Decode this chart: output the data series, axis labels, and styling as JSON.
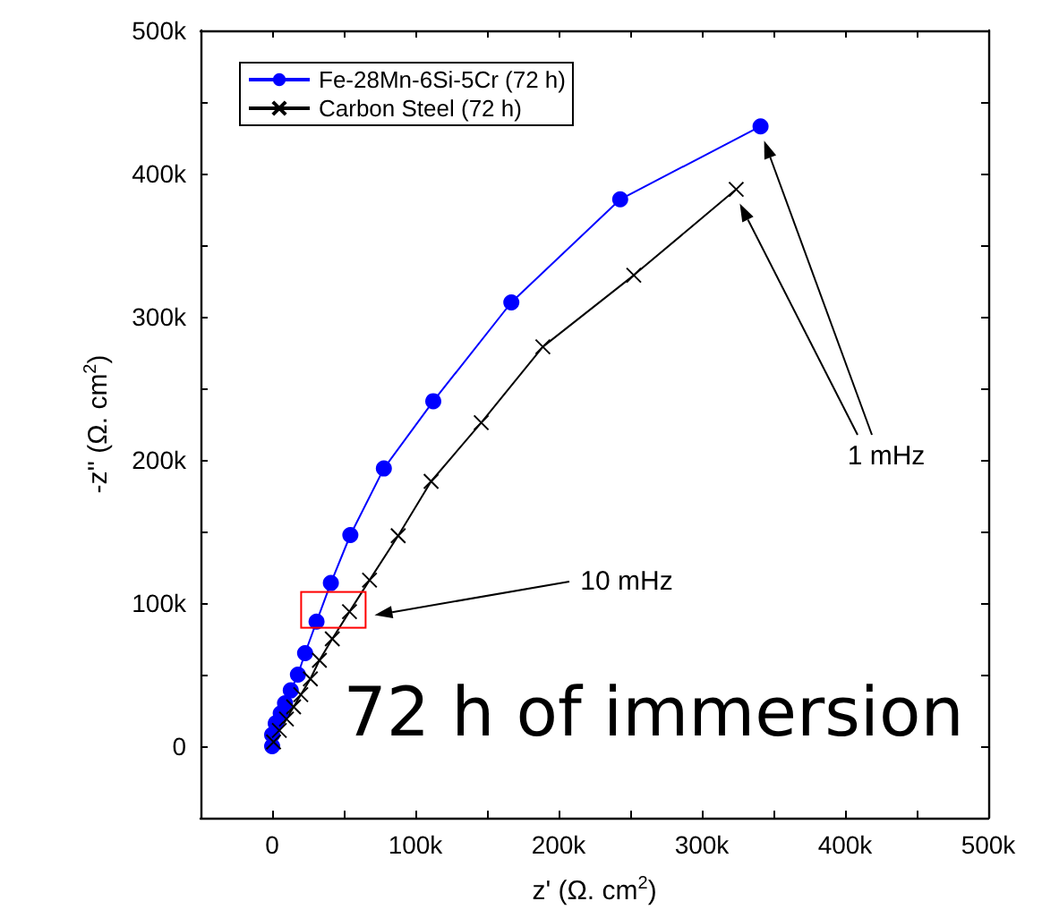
{
  "chart_data": {
    "type": "line",
    "xlabel": "z' (Ω. cm$^{2}$)",
    "ylabel": "-z'' (Ω. cm$^{2}$)",
    "xlim": [
      -50000,
      500000
    ],
    "ylim": [
      -50000,
      500000
    ],
    "xticks": [
      {
        "value": 0,
        "label": "0"
      },
      {
        "value": 100000,
        "label": "100k"
      },
      {
        "value": 200000,
        "label": "200k"
      },
      {
        "value": 300000,
        "label": "300k"
      },
      {
        "value": 400000,
        "label": "400k"
      },
      {
        "value": 500000,
        "label": "500k"
      }
    ],
    "yticks": [
      {
        "value": 0,
        "label": "0"
      },
      {
        "value": 100000,
        "label": "100k"
      },
      {
        "value": 200000,
        "label": "200k"
      },
      {
        "value": 300000,
        "label": "300k"
      },
      {
        "value": 400000,
        "label": "400k"
      },
      {
        "value": 500000,
        "label": "500k"
      }
    ],
    "grid": false,
    "legend": "top left",
    "series": [
      {
        "name": "Fe-28Mn-6Si-5Cr (72 h)",
        "color": "#0000ff",
        "marker": "circle",
        "x": [
          0,
          0,
          2500,
          6000,
          9000,
          13000,
          18000,
          23000,
          31000,
          41000,
          54600,
          78000,
          112500,
          167000,
          243000,
          341000
        ],
        "values": [
          0,
          8000,
          16000,
          23000,
          30000,
          39000,
          50000,
          65000,
          87000,
          114000,
          147500,
          194000,
          241000,
          310000,
          382000,
          433000
        ]
      },
      {
        "name": "Carbon Steel (72 h)",
        "color": "#000000",
        "marker": "cross",
        "x": [
          1000,
          5000,
          10000,
          15000,
          20000,
          26700,
          33000,
          42000,
          54000,
          68000,
          88000,
          111000,
          146000,
          189000,
          252500,
          324000
        ],
        "values": [
          3000,
          11000,
          19000,
          27500,
          36000,
          47000,
          60000,
          75000,
          94000,
          116000,
          147000,
          185000,
          226000,
          279000,
          329000,
          389000
        ]
      }
    ],
    "annotations": [
      "1 mHz",
      "10 mHz",
      "72 h of immersion"
    ]
  }
}
